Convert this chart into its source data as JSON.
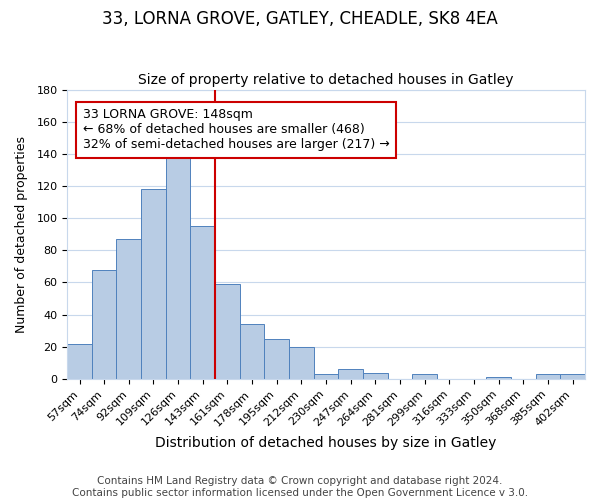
{
  "title": "33, LORNA GROVE, GATLEY, CHEADLE, SK8 4EA",
  "subtitle": "Size of property relative to detached houses in Gatley",
  "xlabel": "Distribution of detached houses by size in Gatley",
  "ylabel": "Number of detached properties",
  "bar_labels": [
    "57sqm",
    "74sqm",
    "92sqm",
    "109sqm",
    "126sqm",
    "143sqm",
    "161sqm",
    "178sqm",
    "195sqm",
    "212sqm",
    "230sqm",
    "247sqm",
    "264sqm",
    "281sqm",
    "299sqm",
    "316sqm",
    "333sqm",
    "350sqm",
    "368sqm",
    "385sqm",
    "402sqm"
  ],
  "bar_values": [
    22,
    68,
    87,
    118,
    140,
    95,
    59,
    34,
    25,
    20,
    3,
    6,
    4,
    0,
    3,
    0,
    0,
    1,
    0,
    3,
    3
  ],
  "bar_color": "#b8cce4",
  "bar_edge_color": "#4f81bd",
  "vline_x": 5.5,
  "vline_color": "#cc0000",
  "annotation_text": "33 LORNA GROVE: 148sqm\n← 68% of detached houses are smaller (468)\n32% of semi-detached houses are larger (217) →",
  "annotation_box_color": "#ffffff",
  "annotation_box_edge_color": "#cc0000",
  "ylim": [
    0,
    180
  ],
  "yticks": [
    0,
    20,
    40,
    60,
    80,
    100,
    120,
    140,
    160,
    180
  ],
  "footer_text": "Contains HM Land Registry data © Crown copyright and database right 2024.\nContains public sector information licensed under the Open Government Licence v 3.0.",
  "title_fontsize": 12,
  "subtitle_fontsize": 10,
  "xlabel_fontsize": 10,
  "ylabel_fontsize": 9,
  "tick_fontsize": 8,
  "footer_fontsize": 7.5,
  "annotation_fontsize": 9,
  "background_color": "#ffffff",
  "grid_color": "#c8d8ec"
}
